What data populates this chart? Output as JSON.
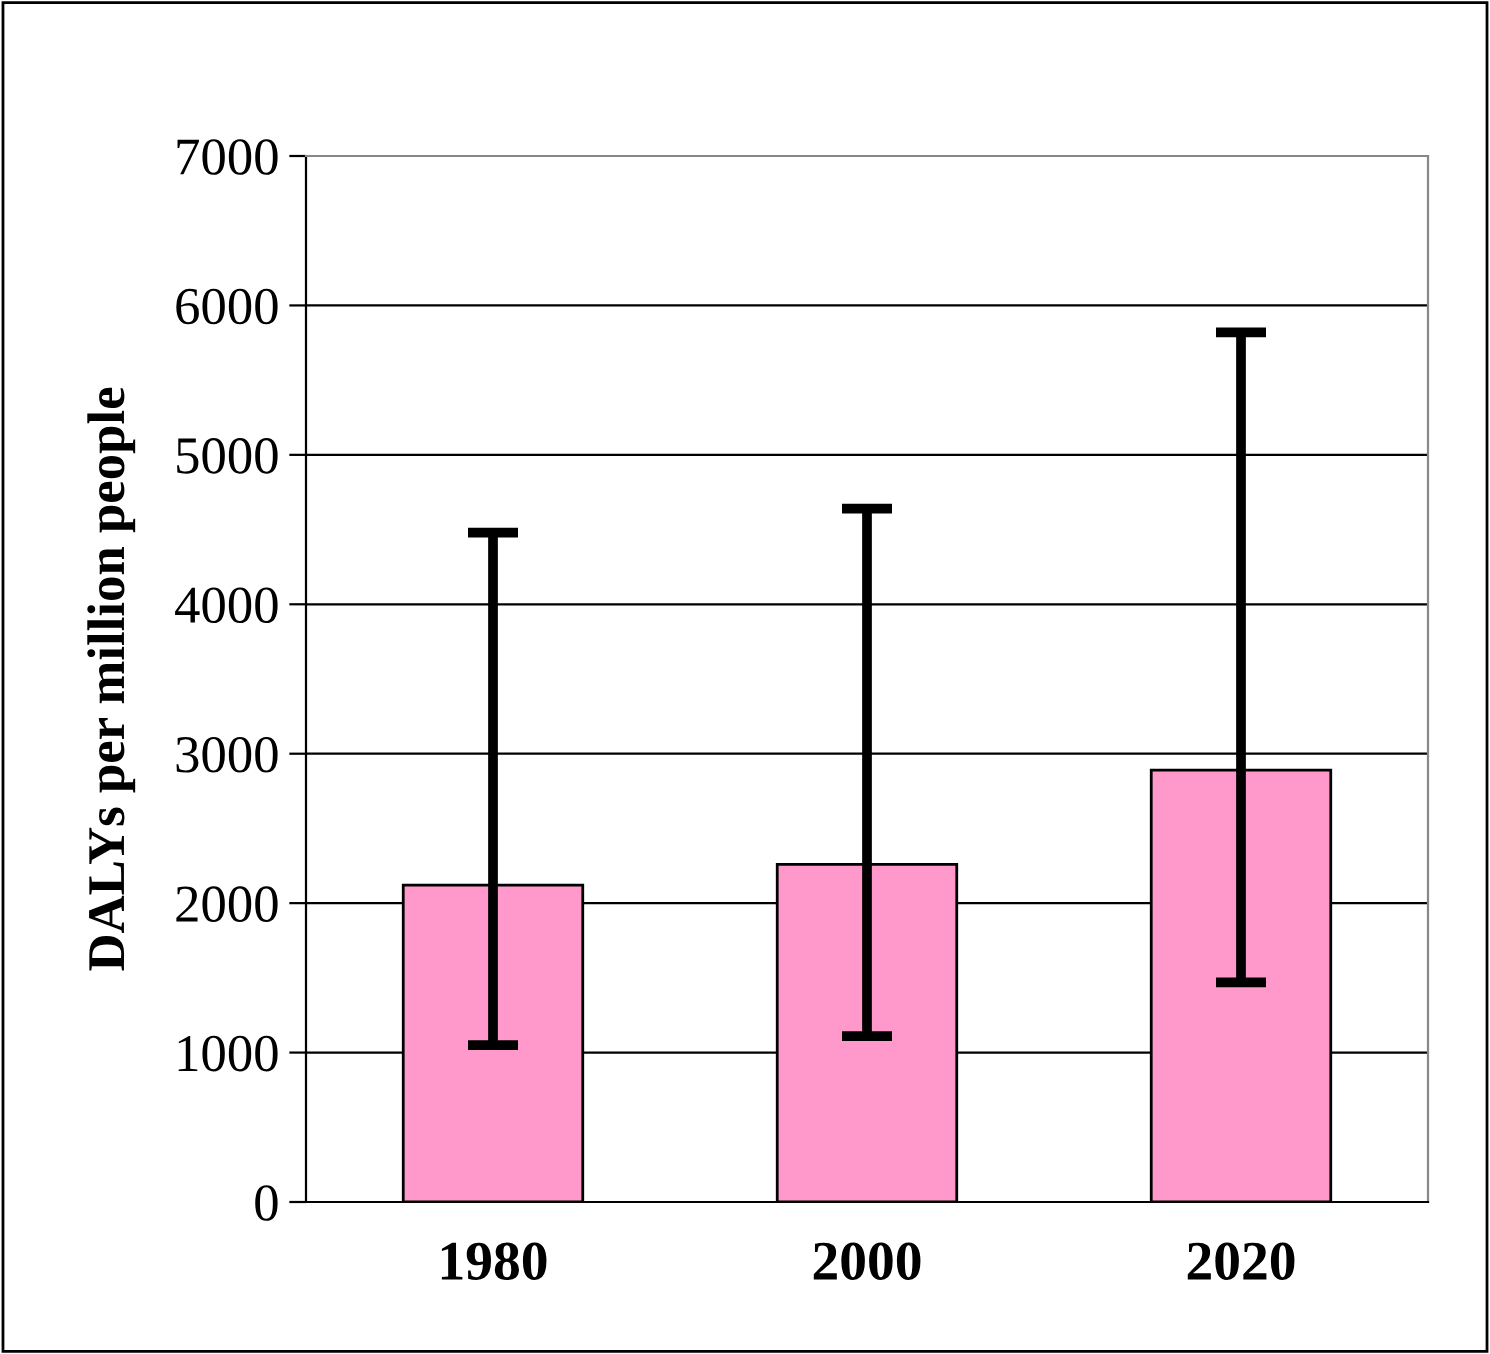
{
  "chart_data": {
    "type": "bar",
    "ylabel": "DALYs per million people",
    "categories": [
      "1980",
      "2000",
      "2020"
    ],
    "values": [
      2120,
      2260,
      2890
    ],
    "errors": [
      [
        1050,
        4480
      ],
      [
        1110,
        4640
      ],
      [
        1470,
        5820
      ]
    ],
    "color": "#ff99cc",
    "ylim": [
      0,
      7000
    ],
    "yticks": [
      0,
      1000,
      2000,
      3000,
      4000,
      5000,
      6000,
      7000
    ],
    "grid": "y",
    "legend": false
  }
}
